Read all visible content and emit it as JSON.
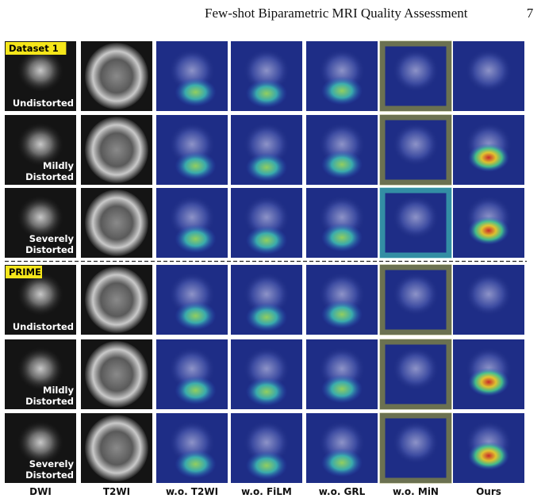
{
  "header": {
    "title": "Few-shot Biparametric MRI Quality Assessment",
    "page": "7"
  },
  "datasets": [
    {
      "label": "Dataset 1",
      "rows": [
        {
          "lines": [
            "Undistorted"
          ]
        },
        {
          "lines": [
            "Mildly",
            "Distorted"
          ]
        },
        {
          "lines": [
            "Severely",
            "Distorted"
          ]
        }
      ]
    },
    {
      "label": "PRIME",
      "rows": [
        {
          "lines": [
            "Undistorted"
          ]
        },
        {
          "lines": [
            "Mildly",
            "Distorted"
          ]
        },
        {
          "lines": [
            "Severely",
            "Distorted"
          ]
        }
      ]
    }
  ],
  "columns": [
    "DWI",
    "T2WI",
    "w.o. T2WI",
    "w.o. FiLM",
    "w.o. GRL",
    "w.o. MiN",
    "Ours"
  ]
}
